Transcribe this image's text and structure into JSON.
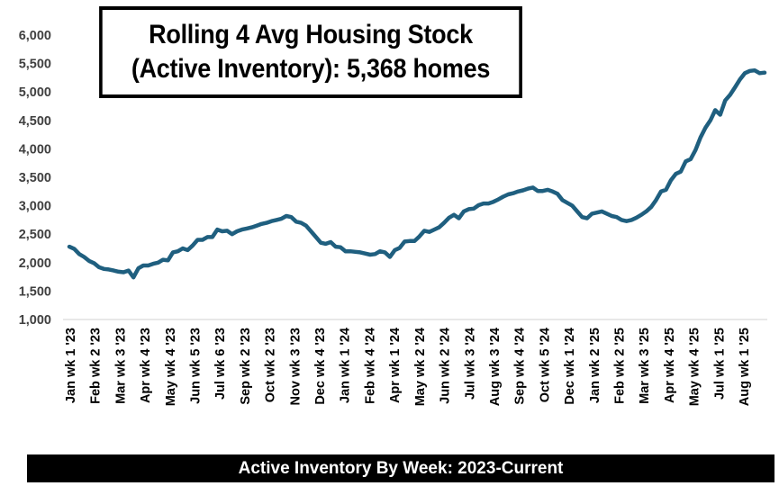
{
  "chart_data": {
    "type": "line",
    "title_line1": "Rolling 4 Avg Housing Stock",
    "title_line2": "(Active Inventory): 5,368 homes",
    "footer": "Active Inventory By Week:  2023-Current",
    "series_color": "#1F5F7F",
    "ylim": [
      1000,
      6000
    ],
    "yticks": [
      "1,000",
      "1,500",
      "2,000",
      "2,500",
      "3,000",
      "3,500",
      "4,000",
      "4,500",
      "5,000",
      "5,500",
      "6,000"
    ],
    "x_tick_labels": [
      "Jan wk 1 '23",
      "Feb wk 2 '23",
      "Mar wk 3 '23",
      "Apr wk 4 '23",
      "May wk 4 '23",
      "Jun wk 5 '23",
      "Jul wk 6 '23",
      "Sep wk 2 '23",
      "Oct wk 2 '23",
      "Nov wk 3 '23",
      "Dec wk 4 '23",
      "Jan wk 1 '24",
      "Feb wk 4 '24",
      "Apr wk 1 '24",
      "May wk 2 '24",
      "Jun wk 2 '24",
      "Jul wk 3 '24",
      "Aug wk 3 '24",
      "Sep wk 4 '24",
      "Oct wk 5 '24",
      "Dec wk 1 '24",
      "Jan wk 2 '25",
      "Feb wk 2 '25",
      "Mar wk 3 '25",
      "Apr wk 4 '25",
      "May wk 4 '25",
      "Jul wk 1 '25",
      "Aug wk 1 '25"
    ],
    "grid": false,
    "values": [
      2280,
      2240,
      2150,
      2100,
      2030,
      1990,
      1920,
      1890,
      1880,
      1860,
      1840,
      1830,
      1860,
      1740,
      1900,
      1950,
      1950,
      1980,
      2000,
      2050,
      2040,
      2180,
      2200,
      2250,
      2220,
      2300,
      2400,
      2400,
      2450,
      2450,
      2580,
      2550,
      2560,
      2500,
      2550,
      2580,
      2600,
      2620,
      2650,
      2680,
      2700,
      2730,
      2750,
      2770,
      2820,
      2800,
      2720,
      2700,
      2650,
      2550,
      2450,
      2350,
      2330,
      2360,
      2280,
      2270,
      2200,
      2200,
      2190,
      2180,
      2160,
      2140,
      2150,
      2200,
      2180,
      2100,
      2220,
      2260,
      2370,
      2380,
      2380,
      2460,
      2560,
      2540,
      2580,
      2620,
      2700,
      2790,
      2840,
      2780,
      2900,
      2940,
      2950,
      3010,
      3040,
      3040,
      3070,
      3110,
      3160,
      3200,
      3220,
      3250,
      3270,
      3300,
      3320,
      3260,
      3260,
      3280,
      3250,
      3210,
      3100,
      3050,
      3000,
      2900,
      2800,
      2780,
      2860,
      2880,
      2900,
      2860,
      2820,
      2800,
      2750,
      2730,
      2750,
      2790,
      2840,
      2900,
      2980,
      3100,
      3250,
      3280,
      3450,
      3560,
      3600,
      3780,
      3820,
      3980,
      4200,
      4370,
      4500,
      4680,
      4600,
      4850,
      4950,
      5080,
      5220,
      5330,
      5370,
      5380,
      5330,
      5340
    ]
  }
}
